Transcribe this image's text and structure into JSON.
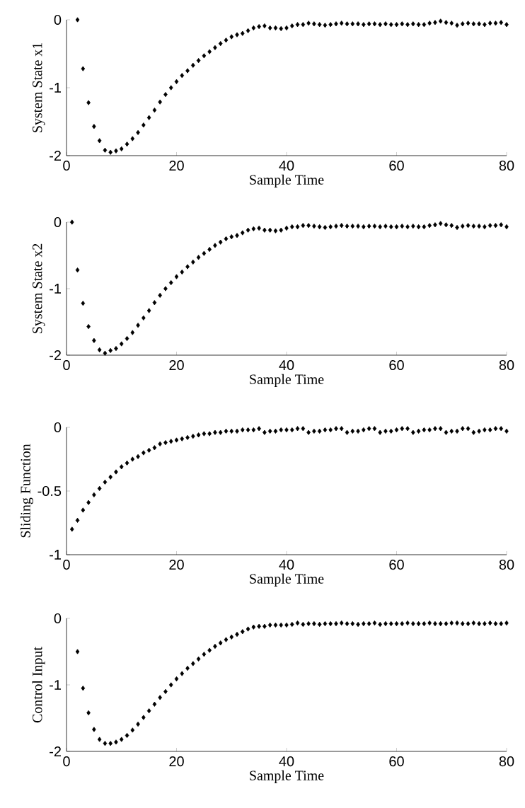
{
  "chart_data": [
    {
      "type": "scatter",
      "xlabel": "Sample Time",
      "ylabel": "System State x1",
      "color": "#000000",
      "marker": "diamond",
      "xlim": [
        0,
        80
      ],
      "ylim": [
        -2,
        0
      ],
      "xticks": [
        0,
        20,
        40,
        60,
        80
      ],
      "yticks": [
        -2,
        -1,
        0
      ],
      "x": [
        2,
        3,
        4,
        5,
        6,
        7,
        8,
        9,
        10,
        11,
        12,
        13,
        14,
        15,
        16,
        17,
        18,
        19,
        20,
        21,
        22,
        23,
        24,
        25,
        26,
        27,
        28,
        29,
        30,
        31,
        32,
        33,
        34,
        35,
        36,
        37,
        38,
        39,
        40,
        41,
        42,
        43,
        44,
        45,
        46,
        47,
        48,
        49,
        50,
        51,
        52,
        53,
        54,
        55,
        56,
        57,
        58,
        59,
        60,
        61,
        62,
        63,
        64,
        65,
        66,
        67,
        68,
        69,
        70,
        71,
        72,
        73,
        74,
        75,
        76,
        77,
        78,
        79,
        80
      ],
      "values": [
        0,
        -0.72,
        -1.22,
        -1.57,
        -1.78,
        -1.92,
        -1.95,
        -1.93,
        -1.9,
        -1.83,
        -1.75,
        -1.66,
        -1.55,
        -1.44,
        -1.33,
        -1.21,
        -1.1,
        -1.0,
        -0.91,
        -0.82,
        -0.75,
        -0.67,
        -0.6,
        -0.53,
        -0.47,
        -0.41,
        -0.35,
        -0.3,
        -0.25,
        -0.22,
        -0.2,
        -0.16,
        -0.12,
        -0.1,
        -0.09,
        -0.12,
        -0.12,
        -0.13,
        -0.12,
        -0.09,
        -0.07,
        -0.07,
        -0.05,
        -0.06,
        -0.07,
        -0.08,
        -0.07,
        -0.06,
        -0.05,
        -0.06,
        -0.06,
        -0.06,
        -0.07,
        -0.06,
        -0.06,
        -0.07,
        -0.06,
        -0.07,
        -0.07,
        -0.06,
        -0.07,
        -0.06,
        -0.07,
        -0.07,
        -0.05,
        -0.04,
        -0.02,
        -0.04,
        -0.05,
        -0.08,
        -0.06,
        -0.05,
        -0.06,
        -0.06,
        -0.07,
        -0.05,
        -0.05,
        -0.04,
        -0.07
      ]
    },
    {
      "type": "scatter",
      "xlabel": "Sample Time",
      "ylabel": "System State x2",
      "color": "#000000",
      "marker": "diamond",
      "xlim": [
        0,
        80
      ],
      "ylim": [
        -2,
        0
      ],
      "xticks": [
        0,
        20,
        40,
        60,
        80
      ],
      "yticks": [
        -2,
        -1,
        0
      ],
      "x": [
        1,
        2,
        3,
        4,
        5,
        6,
        7,
        8,
        9,
        10,
        11,
        12,
        13,
        14,
        15,
        16,
        17,
        18,
        19,
        20,
        21,
        22,
        23,
        24,
        25,
        26,
        27,
        28,
        29,
        30,
        31,
        32,
        33,
        34,
        35,
        36,
        37,
        38,
        39,
        40,
        41,
        42,
        43,
        44,
        45,
        46,
        47,
        48,
        49,
        50,
        51,
        52,
        53,
        54,
        55,
        56,
        57,
        58,
        59,
        60,
        61,
        62,
        63,
        64,
        65,
        66,
        67,
        68,
        69,
        70,
        71,
        72,
        73,
        74,
        75,
        76,
        77,
        78,
        79,
        80
      ],
      "values": [
        0,
        -0.72,
        -1.22,
        -1.57,
        -1.78,
        -1.92,
        -1.97,
        -1.93,
        -1.9,
        -1.83,
        -1.75,
        -1.66,
        -1.55,
        -1.44,
        -1.33,
        -1.21,
        -1.1,
        -1.0,
        -0.91,
        -0.82,
        -0.75,
        -0.67,
        -0.6,
        -0.53,
        -0.47,
        -0.41,
        -0.35,
        -0.3,
        -0.25,
        -0.22,
        -0.2,
        -0.16,
        -0.12,
        -0.1,
        -0.09,
        -0.12,
        -0.12,
        -0.13,
        -0.12,
        -0.09,
        -0.07,
        -0.07,
        -0.05,
        -0.05,
        -0.06,
        -0.07,
        -0.08,
        -0.07,
        -0.06,
        -0.05,
        -0.06,
        -0.06,
        -0.06,
        -0.07,
        -0.06,
        -0.06,
        -0.07,
        -0.06,
        -0.07,
        -0.07,
        -0.06,
        -0.07,
        -0.06,
        -0.07,
        -0.07,
        -0.05,
        -0.04,
        -0.02,
        -0.04,
        -0.05,
        -0.08,
        -0.06,
        -0.05,
        -0.06,
        -0.06,
        -0.07,
        -0.05,
        -0.05,
        -0.04,
        -0.07
      ]
    },
    {
      "type": "scatter",
      "xlabel": "Sample Time",
      "ylabel": "Sliding Function",
      "color": "#000000",
      "marker": "diamond",
      "xlim": [
        0,
        80
      ],
      "ylim": [
        -1,
        0
      ],
      "xticks": [
        0,
        20,
        40,
        60,
        80
      ],
      "yticks": [
        -1,
        -0.5,
        0
      ],
      "x": [
        1,
        2,
        3,
        4,
        5,
        6,
        7,
        8,
        9,
        10,
        11,
        12,
        13,
        14,
        15,
        16,
        17,
        18,
        19,
        20,
        21,
        22,
        23,
        24,
        25,
        26,
        27,
        28,
        29,
        30,
        31,
        32,
        33,
        34,
        35,
        36,
        37,
        38,
        39,
        40,
        41,
        42,
        43,
        44,
        45,
        46,
        47,
        48,
        49,
        50,
        51,
        52,
        53,
        54,
        55,
        56,
        57,
        58,
        59,
        60,
        61,
        62,
        63,
        64,
        65,
        66,
        67,
        68,
        69,
        70,
        71,
        72,
        73,
        74,
        75,
        76,
        77,
        78,
        79,
        80
      ],
      "values": [
        -0.8,
        -0.73,
        -0.65,
        -0.59,
        -0.53,
        -0.48,
        -0.43,
        -0.39,
        -0.35,
        -0.31,
        -0.28,
        -0.25,
        -0.23,
        -0.2,
        -0.18,
        -0.16,
        -0.13,
        -0.12,
        -0.11,
        -0.1,
        -0.09,
        -0.08,
        -0.07,
        -0.06,
        -0.05,
        -0.05,
        -0.04,
        -0.04,
        -0.03,
        -0.03,
        -0.03,
        -0.02,
        -0.02,
        -0.02,
        -0.01,
        -0.04,
        -0.03,
        -0.03,
        -0.02,
        -0.02,
        -0.02,
        -0.01,
        -0.01,
        -0.04,
        -0.03,
        -0.03,
        -0.02,
        -0.02,
        -0.01,
        -0.01,
        -0.04,
        -0.03,
        -0.03,
        -0.02,
        -0.01,
        -0.01,
        -0.04,
        -0.03,
        -0.03,
        -0.02,
        -0.01,
        -0.01,
        -0.04,
        -0.03,
        -0.02,
        -0.02,
        -0.01,
        -0.01,
        -0.04,
        -0.03,
        -0.03,
        -0.01,
        -0.01,
        -0.04,
        -0.03,
        -0.02,
        -0.02,
        -0.01,
        -0.01,
        -0.03
      ]
    },
    {
      "type": "scatter",
      "xlabel": "Sample Time",
      "ylabel": "Control Input",
      "color": "#000000",
      "marker": "diamond",
      "xlim": [
        0,
        80
      ],
      "ylim": [
        -2,
        0
      ],
      "xticks": [
        0,
        20,
        40,
        60,
        80
      ],
      "yticks": [
        -2,
        -1,
        0
      ],
      "x": [
        2,
        3,
        4,
        5,
        6,
        7,
        8,
        9,
        10,
        11,
        12,
        13,
        14,
        15,
        16,
        17,
        18,
        19,
        20,
        21,
        22,
        23,
        24,
        25,
        26,
        27,
        28,
        29,
        30,
        31,
        32,
        33,
        34,
        35,
        36,
        37,
        38,
        39,
        40,
        41,
        42,
        43,
        44,
        45,
        46,
        47,
        48,
        49,
        50,
        51,
        52,
        53,
        54,
        55,
        56,
        57,
        58,
        59,
        60,
        61,
        62,
        63,
        64,
        65,
        66,
        67,
        68,
        69,
        70,
        71,
        72,
        73,
        74,
        75,
        76,
        77,
        78,
        79,
        80
      ],
      "values": [
        -0.5,
        -1.05,
        -1.42,
        -1.67,
        -1.82,
        -1.88,
        -1.88,
        -1.86,
        -1.82,
        -1.76,
        -1.68,
        -1.59,
        -1.49,
        -1.39,
        -1.29,
        -1.19,
        -1.1,
        -1.0,
        -0.91,
        -0.83,
        -0.75,
        -0.68,
        -0.61,
        -0.54,
        -0.48,
        -0.42,
        -0.37,
        -0.32,
        -0.28,
        -0.24,
        -0.2,
        -0.16,
        -0.13,
        -0.12,
        -0.12,
        -0.1,
        -0.1,
        -0.1,
        -0.1,
        -0.09,
        -0.07,
        -0.09,
        -0.08,
        -0.08,
        -0.09,
        -0.08,
        -0.08,
        -0.08,
        -0.07,
        -0.08,
        -0.08,
        -0.09,
        -0.08,
        -0.08,
        -0.07,
        -0.09,
        -0.08,
        -0.08,
        -0.08,
        -0.08,
        -0.07,
        -0.08,
        -0.08,
        -0.08,
        -0.07,
        -0.08,
        -0.08,
        -0.08,
        -0.07,
        -0.07,
        -0.08,
        -0.08,
        -0.07,
        -0.08,
        -0.08,
        -0.07,
        -0.08,
        -0.08,
        -0.07
      ]
    }
  ]
}
